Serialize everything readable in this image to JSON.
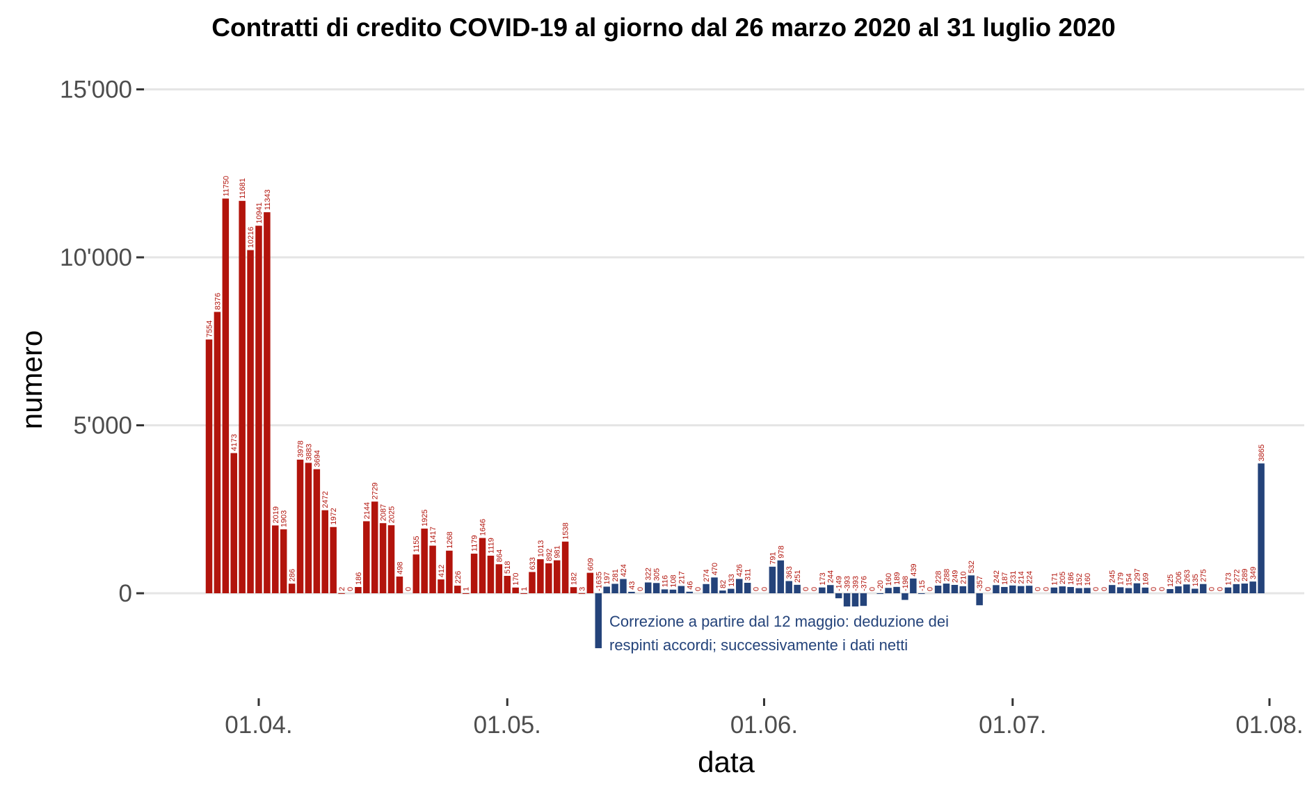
{
  "chart_data": {
    "type": "bar",
    "title": "Contratti di credito COVID-19 al giorno dal 26 marzo 2020 al 31 luglio 2020",
    "xlabel": "data",
    "ylabel": "numero",
    "start_date": "2020-03-26",
    "ylim": [
      -3000,
      15500
    ],
    "y_ticks": [
      0,
      5000,
      10000,
      15000
    ],
    "y_tick_labels": [
      "0",
      "5'000",
      "10'000",
      "15'000"
    ],
    "x_ticks": [
      "2020-04-01",
      "2020-05-01",
      "2020-06-01",
      "2020-07-01",
      "2020-08-01"
    ],
    "x_tick_labels": [
      "01.04.",
      "01.05.",
      "01.06.",
      "01.07.",
      "01.08."
    ],
    "grid": "horizontal",
    "colors": {
      "gross": "#b2140c",
      "net": "#24437a",
      "grid": "#e5e5e5",
      "label_red": "#b2140c"
    },
    "series": [
      {
        "values": [
          7554,
          8376,
          11750,
          4173,
          11681,
          10216,
          10941,
          11343,
          2019,
          1903,
          286,
          3978,
          3883,
          3694,
          2472,
          1972,
          2,
          0,
          186,
          2144,
          2729,
          2087,
          2025,
          498,
          0,
          1155,
          1925,
          1417,
          412,
          1268,
          226,
          1,
          1179,
          1646,
          1119,
          864,
          518,
          170,
          1,
          633,
          1013,
          892,
          981,
          1538,
          182,
          3,
          609,
          -1635,
          197,
          281,
          424,
          43,
          0,
          322,
          305,
          116,
          108,
          217,
          46,
          0,
          274,
          470,
          82,
          133,
          426,
          311,
          0,
          0,
          791,
          978,
          363,
          251,
          0,
          0,
          173,
          244,
          -149,
          -393,
          -393,
          -376,
          0,
          -20,
          160,
          189,
          -198,
          439,
          -15,
          0,
          228,
          288,
          249,
          210,
          532,
          -357,
          0,
          242,
          187,
          231,
          214,
          224,
          0,
          0,
          171,
          205,
          186,
          152,
          160,
          0,
          0,
          245,
          179,
          154,
          297,
          169,
          0,
          0,
          125,
          206,
          263,
          135,
          275,
          0,
          0,
          173,
          272,
          289,
          349,
          3865
        ]
      }
    ],
    "bar_labels": [
      "7554",
      "8376",
      "11750",
      "4173",
      "11681",
      "10216",
      "10941",
      "11343",
      "2019",
      "1903",
      "286",
      "3978",
      "3883",
      "3694",
      "2472",
      "1972",
      "2",
      "0",
      "186",
      "2144",
      "2729",
      "2087",
      "2025",
      "498",
      "0",
      "1155",
      "1925",
      "1417",
      "412",
      "1268",
      "226",
      "1",
      "1179",
      "1646",
      "1119",
      "864",
      "518",
      "170",
      "1",
      "633",
      "1013",
      "892",
      "981",
      "1538",
      "182",
      "3",
      "609",
      "-1635",
      "197",
      "281",
      "424",
      "43",
      "0",
      "322",
      "305",
      "116",
      "108",
      "217",
      "46",
      "0",
      "274",
      "470",
      "82",
      "133",
      "426",
      "311",
      "0",
      "0",
      "791",
      "978",
      "363",
      "251",
      "0",
      "0",
      "173",
      "244",
      "-149",
      "-393",
      "-393",
      "-376",
      "0",
      "-20",
      "160",
      "189",
      "-198",
      "439",
      "-15",
      "0",
      "228",
      "288",
      "249",
      "210",
      "532",
      "-357",
      "0",
      "242",
      "187",
      "231",
      "214",
      "224",
      "0",
      "0",
      "171",
      "205",
      "186",
      "152",
      "160",
      "0",
      "0",
      "245",
      "179",
      "154",
      "297",
      "169",
      "0",
      "0",
      "125",
      "206",
      "263",
      "135",
      "275",
      "0",
      "0",
      "173",
      "272",
      "289",
      "349",
      "3865"
    ],
    "net_from_index": 47,
    "annotation": {
      "lines": [
        "Correzione a partire dal 12 maggio: deduzione dei",
        "respinti accordi; successivamente i dati netti"
      ],
      "color": "#24437a"
    }
  }
}
